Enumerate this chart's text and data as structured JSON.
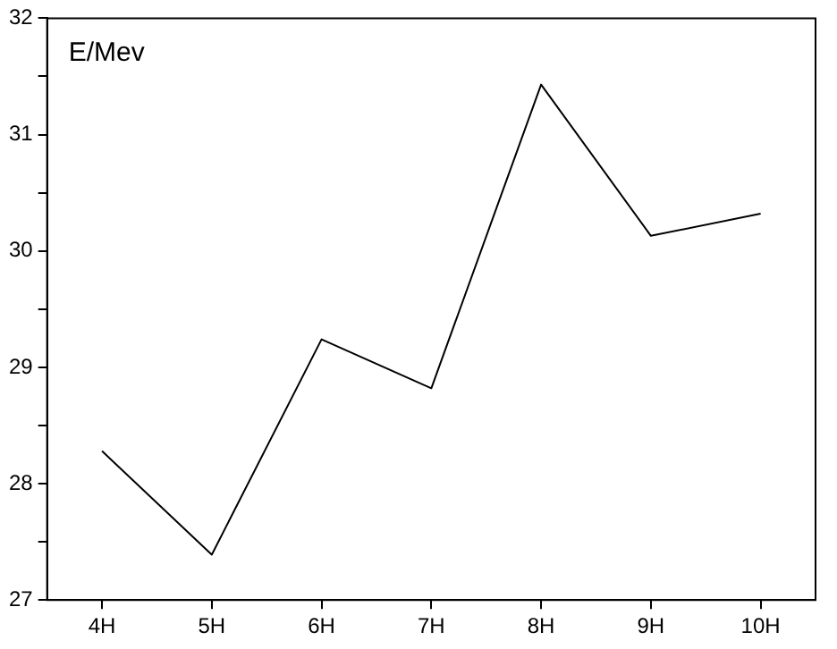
{
  "chart_data": {
    "type": "line",
    "ylabel": "E/Mev",
    "categories": [
      "4H",
      "5H",
      "6H",
      "7H",
      "8H",
      "9H",
      "10H"
    ],
    "series": [
      {
        "color": "#000000",
        "values": [
          28.28,
          27.39,
          29.24,
          28.82,
          31.43,
          30.13,
          30.32
        ]
      }
    ],
    "ylim": [
      27,
      32
    ],
    "yticks": [
      27,
      {
        "value": 27.5,
        "label": null
      },
      28,
      {
        "value": 28.5,
        "label": null
      },
      29,
      {
        "value": 29.5,
        "label": null
      },
      30,
      {
        "value": 30.5,
        "label": null
      },
      31,
      {
        "value": 31.5,
        "label": null
      },
      32
    ],
    "grid": false,
    "legend": false,
    "marker": "none",
    "line_style": "solid"
  }
}
